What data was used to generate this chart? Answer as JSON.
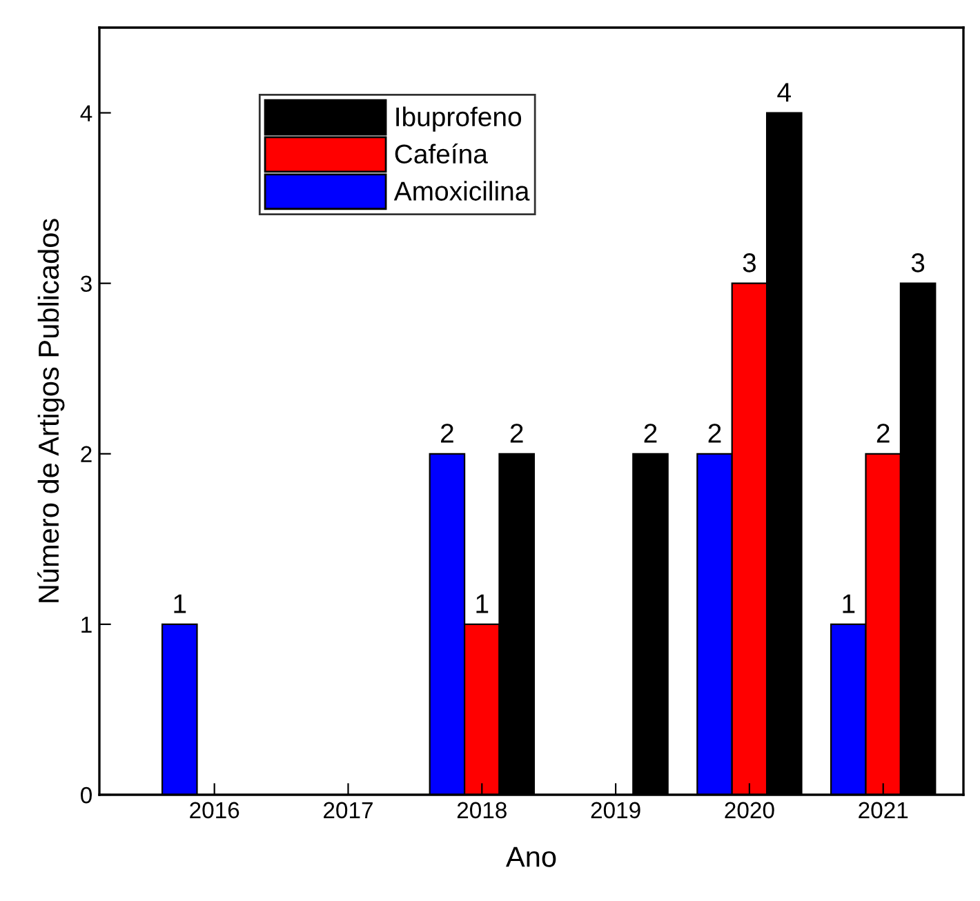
{
  "chart_data": {
    "type": "bar",
    "xlabel": "Ano",
    "ylabel": "Número de Artigos Publicados",
    "categories": [
      "2016",
      "2017",
      "2018",
      "2019",
      "2020",
      "2021"
    ],
    "series": [
      {
        "name": "Amoxicilina",
        "color": "#0000ff",
        "values": [
          1,
          null,
          2,
          null,
          2,
          1
        ]
      },
      {
        "name": "Cafeína",
        "color": "#ff0000",
        "values": [
          null,
          null,
          1,
          null,
          3,
          2
        ]
      },
      {
        "name": "Ibuprofeno",
        "color": "#000000",
        "values": [
          null,
          null,
          2,
          2,
          4,
          3
        ]
      }
    ],
    "ylim": [
      0,
      4.5
    ],
    "yticks": [
      0,
      1,
      2,
      3,
      4
    ],
    "data_labels": true,
    "legend": "top left",
    "grid": false
  }
}
